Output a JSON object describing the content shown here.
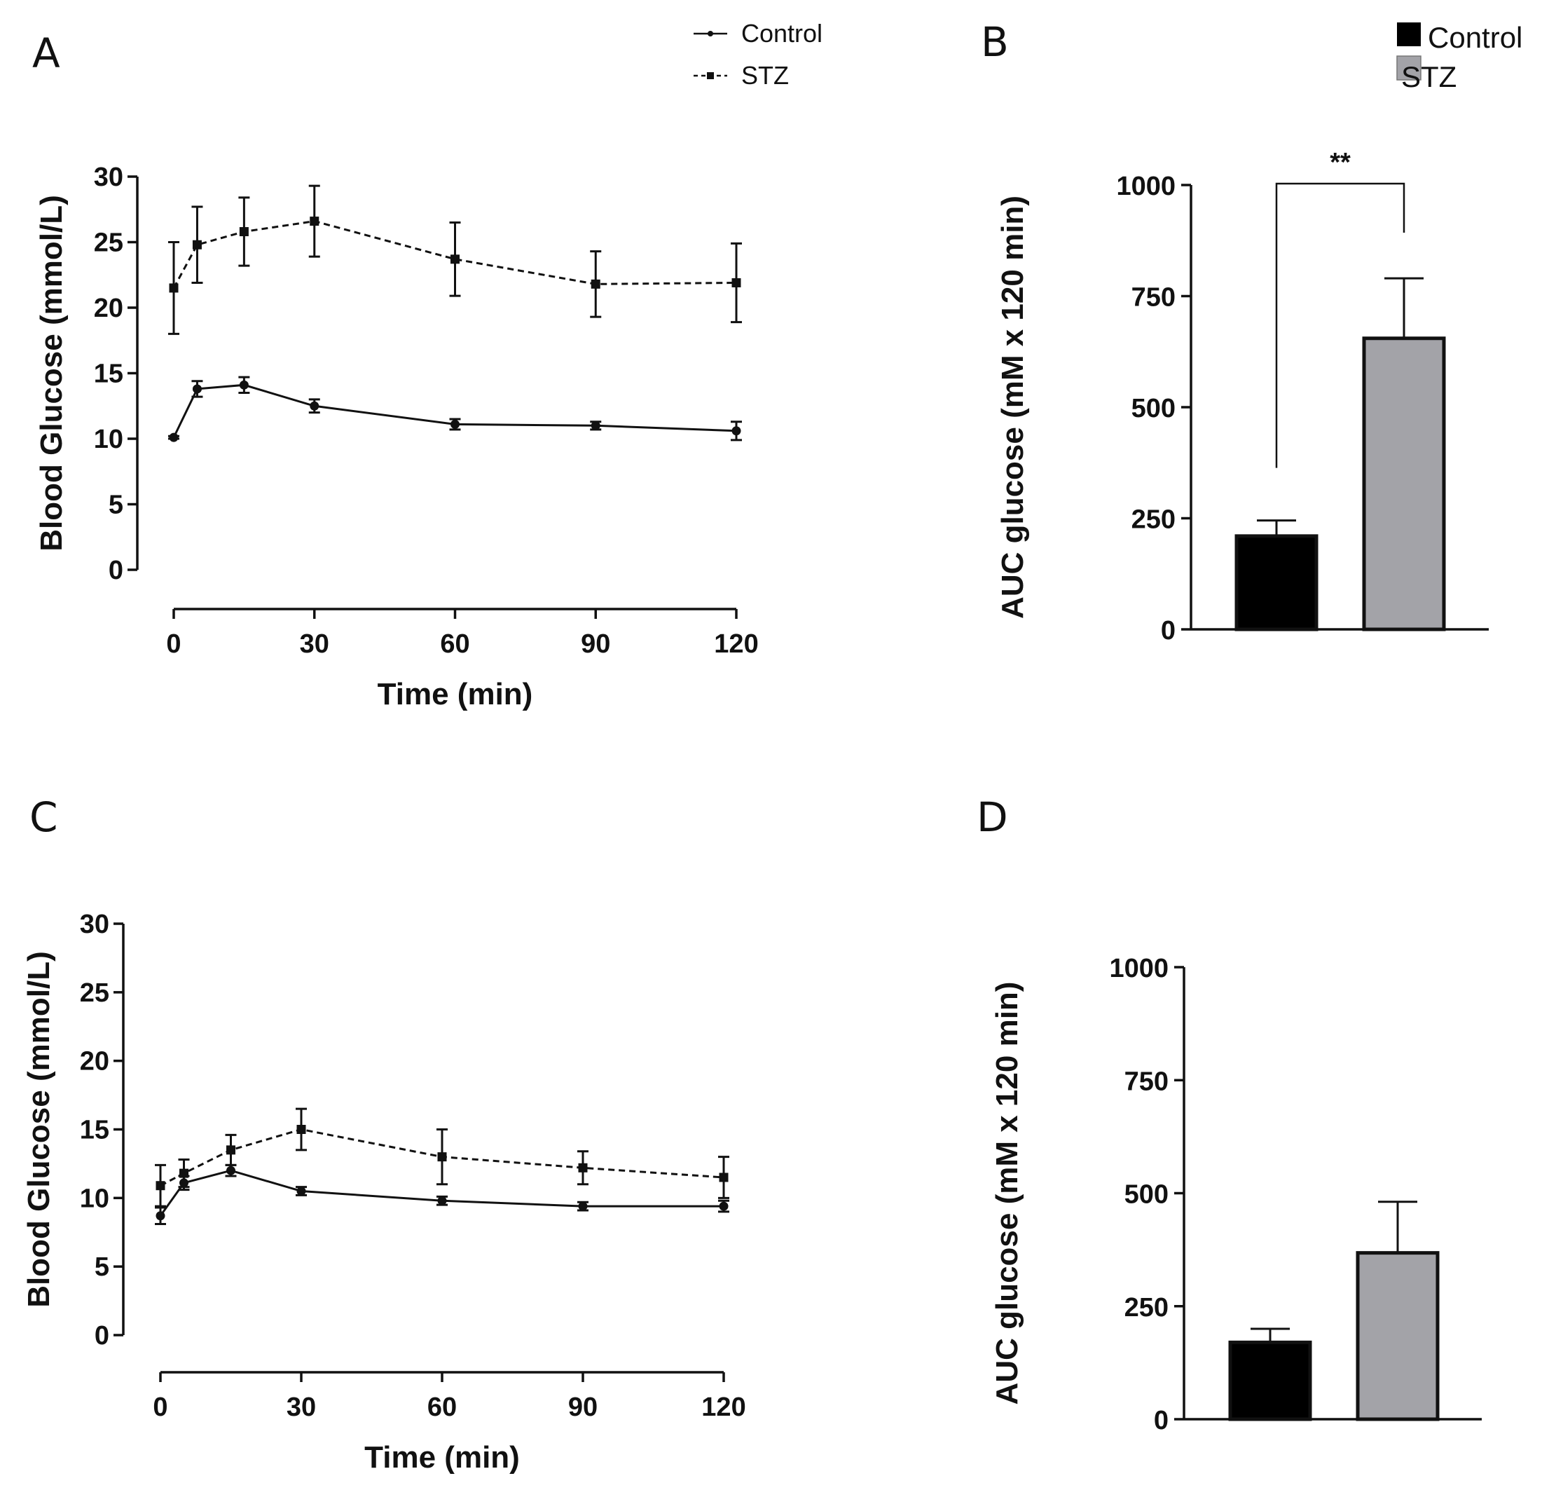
{
  "figure": {
    "panel_labels": [
      "A",
      "B",
      "C",
      "D"
    ],
    "line_legend": {
      "control": "Control",
      "stz": "STZ"
    },
    "bar_legend": {
      "control": "Control",
      "stz": "STZ"
    },
    "colors": {
      "control_bar": "#000000",
      "stz_bar": "#a3a3a8",
      "ink": "#111111"
    }
  },
  "chart_data": [
    {
      "id": "A",
      "type": "line",
      "ylabel": "Blood Glucose (mmol/L)",
      "xlabel": "Time (min)",
      "ylim": [
        0,
        30
      ],
      "yticks": [
        0,
        5,
        10,
        15,
        20,
        25,
        30
      ],
      "xlim": [
        0,
        120
      ],
      "xticks": [
        0,
        30,
        60,
        90,
        120
      ],
      "x": [
        0,
        5,
        15,
        30,
        60,
        90,
        120
      ],
      "series": [
        {
          "name": "Control",
          "style": "solid",
          "marker": "circle",
          "values": [
            10.1,
            13.8,
            14.1,
            12.5,
            11.1,
            11.0,
            10.6
          ],
          "errors": [
            0.1,
            0.6,
            0.6,
            0.5,
            0.4,
            0.3,
            0.7
          ]
        },
        {
          "name": "STZ",
          "style": "dashed",
          "marker": "square",
          "values": [
            21.5,
            24.8,
            25.8,
            26.6,
            23.7,
            21.8,
            21.9
          ],
          "errors": [
            3.5,
            2.9,
            2.6,
            2.7,
            2.8,
            2.5,
            3.0
          ]
        }
      ]
    },
    {
      "id": "B",
      "type": "bar",
      "ylabel": "AUC glucose  (mM x 120 min)",
      "ylim": [
        0,
        1000
      ],
      "yticks": [
        0,
        250,
        500,
        750,
        1000
      ],
      "categories": [
        "Control",
        "STZ"
      ],
      "values": [
        210,
        655
      ],
      "errors": [
        35,
        135
      ],
      "significance": "**"
    },
    {
      "id": "C",
      "type": "line",
      "ylabel": "Blood Glucose (mmol/L)",
      "xlabel": "Time (min)",
      "ylim": [
        0,
        30
      ],
      "yticks": [
        0,
        5,
        10,
        15,
        20,
        25,
        30
      ],
      "xlim": [
        0,
        120
      ],
      "xticks": [
        0,
        30,
        60,
        90,
        120
      ],
      "x": [
        0,
        5,
        15,
        30,
        60,
        90,
        120
      ],
      "series": [
        {
          "name": "Control",
          "style": "solid",
          "marker": "circle",
          "values": [
            8.7,
            11.1,
            12.0,
            10.5,
            9.8,
            9.4,
            9.4
          ],
          "errors": [
            0.6,
            0.5,
            0.4,
            0.3,
            0.3,
            0.3,
            0.4
          ]
        },
        {
          "name": "STZ",
          "style": "dashed",
          "marker": "square",
          "values": [
            10.9,
            11.8,
            13.5,
            15.0,
            13.0,
            12.2,
            11.5
          ],
          "errors": [
            1.5,
            1.0,
            1.1,
            1.5,
            2.0,
            1.2,
            1.5
          ]
        }
      ]
    },
    {
      "id": "D",
      "type": "bar",
      "ylabel": "AUC glucose  (mM x 120 min)",
      "ylim": [
        0,
        1000
      ],
      "yticks": [
        0,
        250,
        500,
        750,
        1000
      ],
      "categories": [
        "Control",
        "STZ"
      ],
      "values": [
        170,
        368
      ],
      "errors": [
        30,
        113
      ]
    }
  ]
}
